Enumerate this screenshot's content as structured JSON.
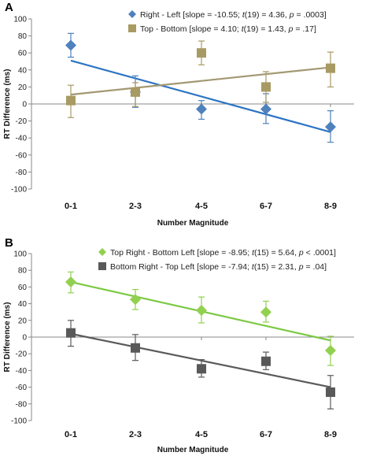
{
  "chart_data": [
    {
      "type": "scatter",
      "panel_label": "A",
      "categories": [
        "0-1",
        "2-3",
        "4-5",
        "6-7",
        "8-9"
      ],
      "xlabel": "Number Magnitude",
      "ylabel": "RT Difference (ms)",
      "ylim": [
        -100,
        100
      ],
      "yticks": [
        "100",
        "80",
        "60",
        "40",
        "20",
        "0",
        "-20",
        "-40",
        "-60",
        "-80",
        "-100"
      ],
      "grid": false,
      "legend_position": "top",
      "series": [
        {
          "name": "Right - Left",
          "stats": [
            "[slope = -10.55; ",
            "t",
            "(19) = 4.36, ",
            "p",
            " = .0003]"
          ],
          "marker": "diamond",
          "color": "#4f81bd",
          "line_color": "#2c74c4",
          "values": [
            69,
            14,
            -6,
            -6,
            -27
          ],
          "err_upper": [
            83,
            33,
            4,
            12,
            -8
          ],
          "err_lower": [
            55,
            -4,
            -18,
            -23,
            -45
          ],
          "trend": [
            51,
            30,
            9,
            -12,
            -33
          ]
        },
        {
          "name": "Top - Bottom",
          "stats": [
            "[slope = 4.10; ",
            "t",
            "(19) = 1.43, ",
            "p",
            " = .17]"
          ],
          "marker": "square",
          "color": "#a89a63",
          "line_color": "#a39872",
          "values": [
            4,
            14,
            60,
            20,
            42
          ],
          "err_upper": [
            22,
            25,
            74,
            38,
            61
          ],
          "err_lower": [
            -16,
            -3,
            46,
            2,
            20
          ],
          "trend": [
            11,
            19,
            27,
            35,
            43
          ]
        }
      ]
    },
    {
      "type": "scatter",
      "panel_label": "B",
      "categories": [
        "0-1",
        "2-3",
        "4-5",
        "6-7",
        "8-9"
      ],
      "xlabel": "Number Magnitude",
      "ylabel": "RT Difference (ms)",
      "ylim": [
        -100,
        100
      ],
      "yticks": [
        "100",
        "80",
        "60",
        "40",
        "20",
        "0",
        "-20",
        "-40",
        "-60",
        "-80",
        "-100"
      ],
      "grid": false,
      "legend_position": "top",
      "series": [
        {
          "name": "Top Right - Bottom  Left",
          "stats": [
            "[slope = -8.95; ",
            "t",
            "(15) = 5.64, ",
            "p",
            " < .0001]"
          ],
          "marker": "diamond",
          "color": "#92d050",
          "line_color": "#7cc943",
          "values": [
            66,
            45,
            32,
            30,
            -16
          ],
          "err_upper": [
            78,
            57,
            48,
            43,
            1
          ],
          "err_lower": [
            53,
            33,
            17,
            18,
            -34
          ],
          "trend": [
            66,
            49,
            32,
            15,
            -4
          ]
        },
        {
          "name": "Bottom Right - Top Left",
          "stats": [
            "[slope = -7.94; ",
            "t",
            "(15) = 2.31, ",
            "p",
            " = .04]"
          ],
          "marker": "square",
          "color": "#595959",
          "line_color": "#5a5a5a",
          "values": [
            5,
            -13,
            -38,
            -29,
            -66
          ],
          "err_upper": [
            20,
            3,
            -27,
            -18,
            -46
          ],
          "err_lower": [
            -11,
            -28,
            -48,
            -39,
            -86
          ],
          "trend": [
            4,
            -12,
            -28,
            -44,
            -60
          ]
        }
      ]
    }
  ]
}
